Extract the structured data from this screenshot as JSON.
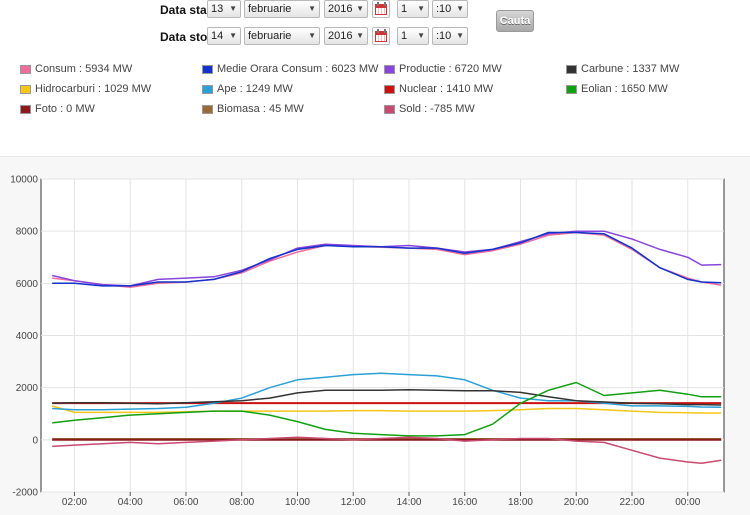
{
  "controls": {
    "start": {
      "label": "Data start",
      "day": "13",
      "month": "februarie",
      "year": "2016",
      "hour": "1",
      "minute": ":10"
    },
    "stop": {
      "label": "Data stop",
      "day": "14",
      "month": "februarie",
      "year": "2016",
      "hour": "1",
      "minute": ":10"
    },
    "button": "Cauta",
    "arrow": "▼"
  },
  "legend": [
    {
      "text": "Consum : 5934 MW",
      "color": "#f06c9b"
    },
    {
      "text": "Medie Orara Consum : 6023 MW",
      "color": "#1133cc"
    },
    {
      "text": "Productie : 6720 MW",
      "color": "#8844dd"
    },
    {
      "text": "Carbune : 1337 MW",
      "color": "#333333"
    },
    {
      "text": "Hidrocarburi : 1029 MW",
      "color": "#f5c518"
    },
    {
      "text": "Ape : 1249 MW",
      "color": "#2aa0d6"
    },
    {
      "text": "Nuclear : 1410 MW",
      "color": "#cc1111"
    },
    {
      "text": "Eolian : 1650 MW",
      "color": "#11a011"
    },
    {
      "text": "Foto : 0 MW",
      "color": "#8b1a1a"
    },
    {
      "text": "Biomasa : 45 MW",
      "color": "#9a6a3a"
    },
    {
      "text": "Sold : -785 MW",
      "color": "#c84a70"
    }
  ],
  "chart_data": {
    "type": "line",
    "title": "",
    "xlabel": "",
    "ylabel": "",
    "grid": true,
    "ylim": [
      -2000,
      10000
    ],
    "y_ticks": [
      "10000",
      "8000",
      "6000",
      "4000",
      "2000",
      "0",
      "-2000"
    ],
    "x_ticks": [
      "02:00",
      "04:00",
      "06:00",
      "08:00",
      "10:00",
      "12:00",
      "14:00",
      "16:00",
      "18:00",
      "20:00",
      "22:00",
      "00:00"
    ],
    "x_hours": [
      1.2,
      2,
      3,
      4,
      5,
      6,
      7,
      8,
      9,
      10,
      11,
      12,
      13,
      14,
      15,
      16,
      17,
      18,
      19,
      20,
      21,
      22,
      23,
      24,
      24.5,
      25.2
    ],
    "series": [
      {
        "name": "Consum",
        "color": "#f06c9b",
        "width": 1.5,
        "values": [
          6200,
          6100,
          5950,
          5850,
          6000,
          6050,
          6150,
          6400,
          6850,
          7200,
          7450,
          7420,
          7380,
          7350,
          7300,
          7100,
          7250,
          7500,
          7850,
          7950,
          7850,
          7300,
          6600,
          6200,
          6050,
          5934
        ]
      },
      {
        "name": "Medie Orara Consum",
        "color": "#1133cc",
        "width": 1.5,
        "values": [
          6000,
          6000,
          5900,
          5900,
          6050,
          6050,
          6150,
          6450,
          6950,
          7300,
          7450,
          7400,
          7400,
          7350,
          7350,
          7150,
          7300,
          7550,
          7950,
          7950,
          7900,
          7350,
          6600,
          6150,
          6050,
          6023
        ]
      },
      {
        "name": "Productie",
        "color": "#8844dd",
        "width": 1.5,
        "values": [
          6300,
          6100,
          5950,
          5900,
          6150,
          6200,
          6250,
          6500,
          6900,
          7350,
          7500,
          7450,
          7400,
          7450,
          7350,
          7200,
          7300,
          7600,
          7900,
          8000,
          8000,
          7700,
          7300,
          7000,
          6700,
          6720
        ]
      },
      {
        "name": "Carbune",
        "color": "#333333",
        "width": 1.5,
        "values": [
          1400,
          1420,
          1420,
          1400,
          1380,
          1420,
          1460,
          1500,
          1600,
          1800,
          1900,
          1900,
          1900,
          1920,
          1900,
          1880,
          1880,
          1820,
          1650,
          1500,
          1450,
          1400,
          1380,
          1350,
          1350,
          1337
        ]
      },
      {
        "name": "Hidrocarburi",
        "color": "#f5c518",
        "width": 1.5,
        "values": [
          1300,
          1050,
          1050,
          1050,
          1050,
          1080,
          1100,
          1100,
          1100,
          1100,
          1100,
          1120,
          1120,
          1100,
          1100,
          1100,
          1120,
          1150,
          1200,
          1200,
          1150,
          1100,
          1050,
          1040,
          1030,
          1029
        ]
      },
      {
        "name": "Ape",
        "color": "#2aa0d6",
        "width": 1.5,
        "values": [
          1200,
          1150,
          1150,
          1180,
          1200,
          1250,
          1400,
          1600,
          2000,
          2300,
          2400,
          2500,
          2550,
          2500,
          2450,
          2300,
          1900,
          1600,
          1500,
          1500,
          1400,
          1300,
          1300,
          1280,
          1260,
          1249
        ]
      },
      {
        "name": "Nuclear",
        "color": "#cc1111",
        "width": 2,
        "values": [
          1410,
          1410,
          1410,
          1410,
          1410,
          1410,
          1410,
          1410,
          1410,
          1410,
          1410,
          1410,
          1410,
          1410,
          1410,
          1410,
          1410,
          1410,
          1410,
          1410,
          1410,
          1410,
          1410,
          1410,
          1410,
          1410
        ]
      },
      {
        "name": "Eolian",
        "color": "#11a011",
        "width": 1.5,
        "values": [
          650,
          750,
          850,
          950,
          1000,
          1050,
          1100,
          1100,
          950,
          700,
          400,
          250,
          200,
          150,
          150,
          200,
          600,
          1400,
          1900,
          2200,
          1700,
          1800,
          1900,
          1750,
          1650,
          1650
        ]
      },
      {
        "name": "Foto",
        "color": "#8b1a1a",
        "width": 2,
        "values": [
          0,
          0,
          0,
          0,
          0,
          0,
          0,
          0,
          0,
          0,
          0,
          0,
          0,
          0,
          0,
          0,
          0,
          0,
          0,
          0,
          0,
          0,
          0,
          0,
          0,
          0
        ]
      },
      {
        "name": "Biomasa",
        "color": "#9a6a3a",
        "width": 1.5,
        "values": [
          45,
          45,
          45,
          45,
          45,
          45,
          45,
          45,
          45,
          45,
          45,
          45,
          45,
          45,
          45,
          45,
          45,
          45,
          45,
          45,
          45,
          45,
          45,
          45,
          45,
          45
        ]
      },
      {
        "name": "Sold",
        "color": "#c84a70",
        "width": 1.5,
        "values": [
          -250,
          -200,
          -150,
          -100,
          -150,
          -100,
          -50,
          0,
          50,
          100,
          50,
          0,
          50,
          100,
          50,
          -50,
          0,
          50,
          50,
          -50,
          -100,
          -400,
          -700,
          -850,
          -900,
          -785
        ]
      }
    ]
  }
}
